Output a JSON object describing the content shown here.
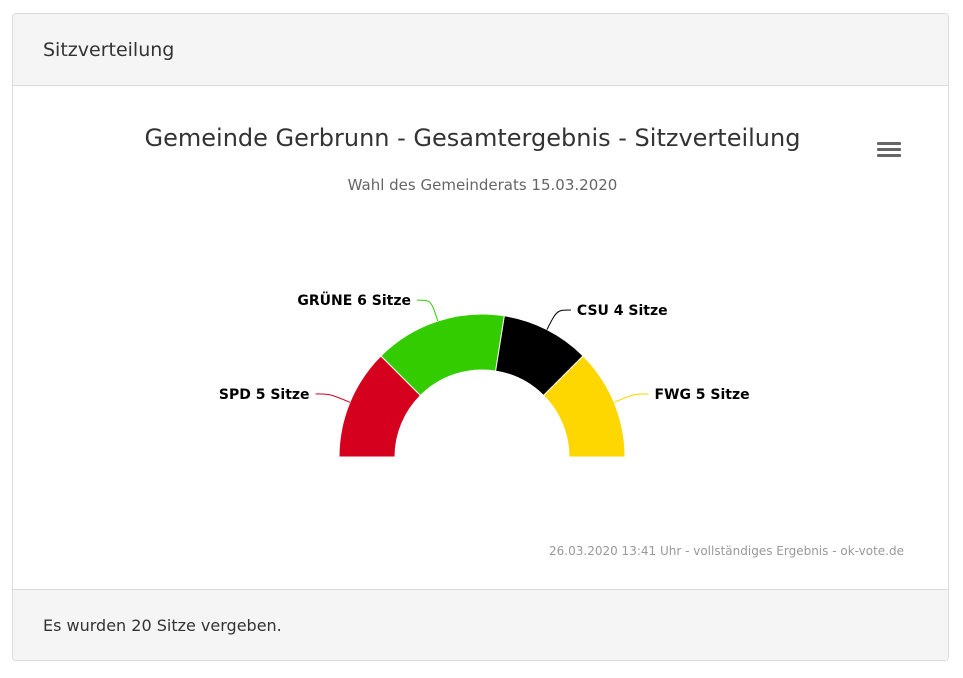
{
  "panel": {
    "heading": "Sitzverteilung",
    "footer": "Es wurden 20 Sitze vergeben."
  },
  "chart_data": {
    "type": "pie",
    "variant": "semi-circle donut (parliament)",
    "title": "Gemeinde Gerbrunn - Gesamtergebnis - Sitzverteilung",
    "subtitle": "Wahl des Gemeinderats 15.03.2020",
    "unit_label": "Sitze",
    "slices": [
      {
        "party": "SPD",
        "seats": 5,
        "label": "SPD 5 Sitze",
        "color": "#d5001e"
      },
      {
        "party": "GRÜNE",
        "seats": 6,
        "label": "GRÜNE 6 Sitze",
        "color": "#33cc00"
      },
      {
        "party": "CSU",
        "seats": 4,
        "label": "CSU 4 Sitze",
        "color": "#000000"
      },
      {
        "party": "FWG",
        "seats": 5,
        "label": "FWG 5 Sitze",
        "color": "#ffd700"
      }
    ],
    "total_seats": 20,
    "credits": "26.03.2020 13:41 Uhr - vollständiges Ergebnis - ok-vote.de"
  },
  "menu_icon": "hamburger-menu-icon"
}
